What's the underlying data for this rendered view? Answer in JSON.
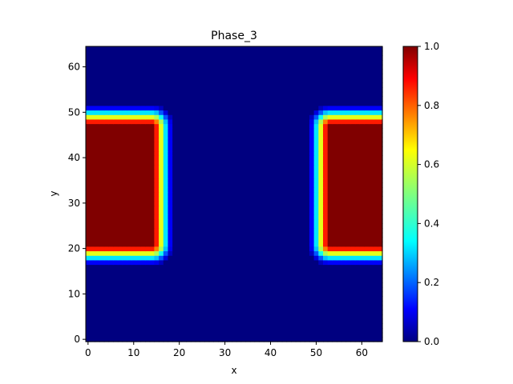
{
  "chart_data": {
    "type": "heatmap",
    "title": "Phase_3",
    "xlabel": "x",
    "ylabel": "y",
    "grid_size": [
      65,
      65
    ],
    "xlim": [
      -0.5,
      64.5
    ],
    "ylim": [
      -0.5,
      64.5
    ],
    "x_ticks": [
      0,
      10,
      20,
      30,
      40,
      50,
      60
    ],
    "y_ticks": [
      0,
      10,
      20,
      30,
      40,
      50,
      60
    ],
    "colormap": "jet",
    "vmin": 0.0,
    "vmax": 1.0,
    "colorbar_ticks": [
      "0.0",
      "0.2",
      "0.4",
      "0.6",
      "0.8",
      "1.0"
    ],
    "grid": false,
    "field": {
      "description": "two mirrored blocks with smooth interface",
      "left_block": {
        "x_range": [
          0,
          14
        ],
        "y_range": [
          21,
          47
        ],
        "value": 1.0
      },
      "right_block": {
        "x_range": [
          53,
          64
        ],
        "y_range": [
          21,
          47
        ],
        "value": 1.0
      },
      "interface_profile": [
        1.0,
        0.85,
        0.6,
        0.35,
        0.12,
        0.0
      ],
      "background_value": 0.0
    }
  }
}
